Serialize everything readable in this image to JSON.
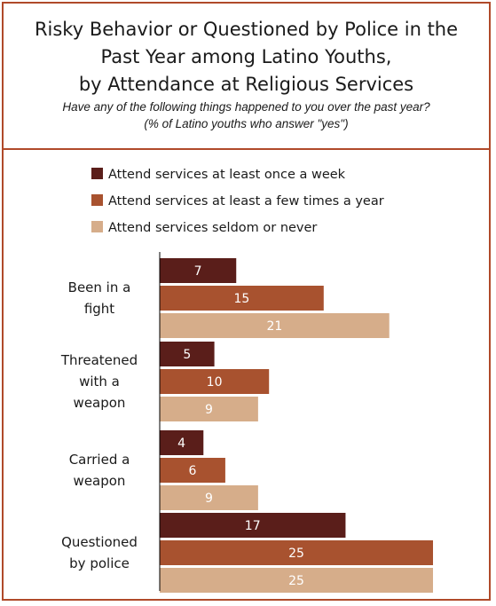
{
  "header": {
    "title_lines": [
      "Risky Behavior or Questioned by Police in the",
      "Past Year among Latino Youths,",
      "by Attendance at Religious Services"
    ],
    "subtitle_lines": [
      "Have any of the following things happened to you over the past year?",
      "(% of Latino youths who answer \"yes\")"
    ]
  },
  "colors": {
    "frame": "#b04a2a",
    "series": [
      "#5a1e1a",
      "#a8522f",
      "#d6ad8a"
    ]
  },
  "chart_data": {
    "type": "bar",
    "orientation": "horizontal",
    "categories": [
      [
        "Been in a",
        "fight"
      ],
      [
        "Threatened",
        "with a",
        "weapon"
      ],
      [
        "Carried a",
        "weapon"
      ],
      [
        "Questioned",
        "by police"
      ]
    ],
    "series": [
      {
        "name": "Attend services at least once a week",
        "values": [
          7,
          5,
          4,
          17
        ]
      },
      {
        "name": "Attend services at least a few times a year",
        "values": [
          15,
          10,
          6,
          25
        ]
      },
      {
        "name": "Attend services seldom or never",
        "values": [
          21,
          9,
          9,
          25
        ]
      }
    ],
    "xlim": [
      0,
      25
    ],
    "legend_position": "top",
    "grid": false
  }
}
